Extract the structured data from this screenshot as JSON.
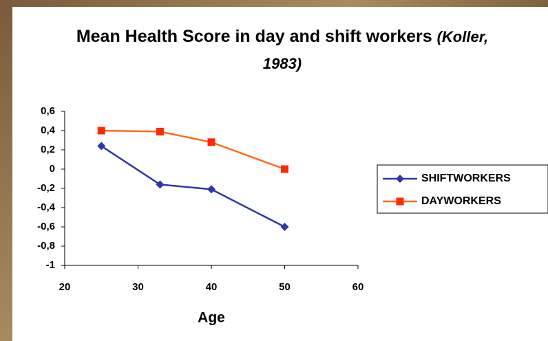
{
  "chart_data": {
    "type": "line",
    "title": "Mean Health Score in day and shift workers",
    "title_source": "(Koller, 1983)",
    "x_label": "Age",
    "series": [
      {
        "name": "SHIFTWORKERS",
        "color": "#2e37a8",
        "marker": "diamond",
        "x": [
          25,
          33,
          40,
          50
        ],
        "values": [
          0.24,
          -0.16,
          -0.21,
          -0.6
        ]
      },
      {
        "name": "DAYWORKERS",
        "color": "#ff6a1a",
        "marker_color": "#ff2a00",
        "marker": "square",
        "x": [
          25,
          33,
          40,
          50
        ],
        "values": [
          0.4,
          0.39,
          0.28,
          0.0
        ]
      }
    ],
    "xlim": [
      20,
      60
    ],
    "xticks": [
      20,
      30,
      40,
      50,
      60
    ],
    "ylim": [
      -1,
      0.6
    ],
    "yticks": [
      -1,
      {
        "value": -0.8,
        "label": "-0,8"
      },
      {
        "value": -0.6,
        "label": "-0,6"
      },
      {
        "value": -0.4,
        "label": "-0,4"
      },
      {
        "value": -0.2,
        "label": "-0,2"
      },
      0,
      {
        "value": 0.2,
        "label": "0,2"
      },
      {
        "value": 0.4,
        "label": "0,4"
      },
      {
        "value": 0.6,
        "label": "0,6"
      }
    ],
    "grid": false,
    "legend": "right"
  }
}
